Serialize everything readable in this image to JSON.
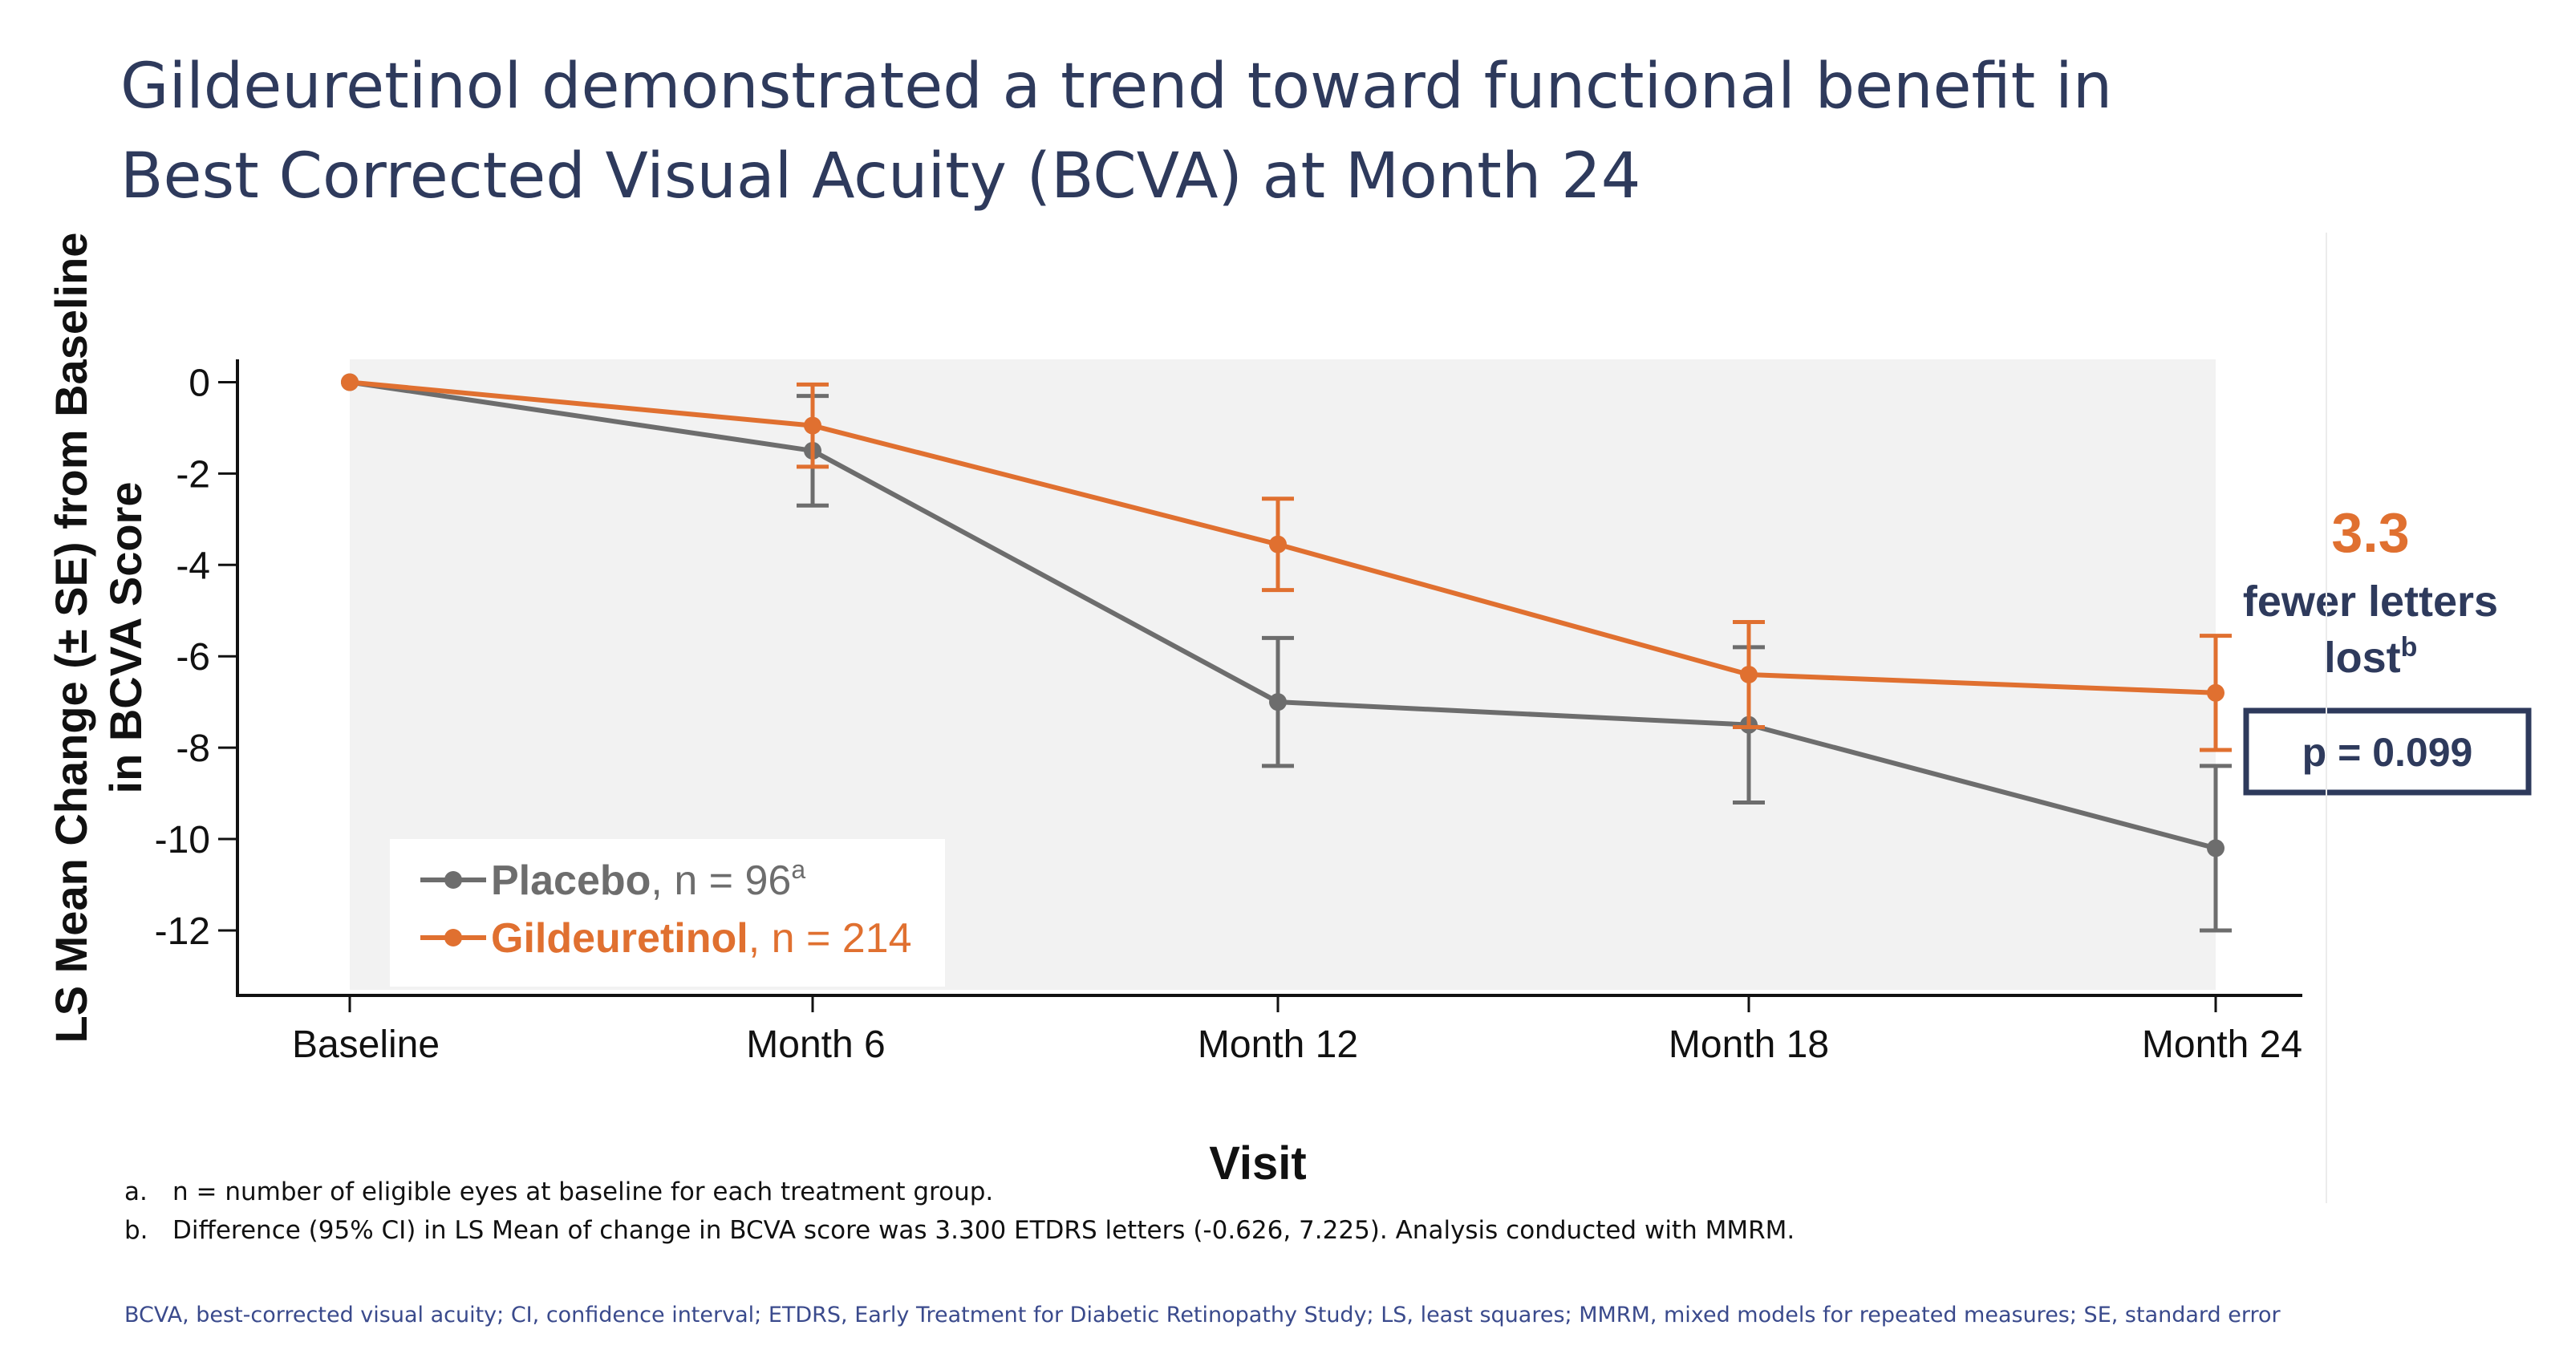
{
  "slide": {
    "title_line1": "Gildeuretinol demonstrated a trend toward functional benefit in",
    "title_line2": "Best Corrected Visual Acuity (BCVA) at Month 24"
  },
  "callout": {
    "value": "3.3",
    "text_line1": "fewer letters",
    "text_line2": "lost",
    "text_sup": "b",
    "pvalue": "p = 0.099",
    "value_color": "#e07030",
    "text_color": "#2e3a5c"
  },
  "footnotes": [
    {
      "mark": "a.",
      "text": "n = number of eligible eyes at baseline for each treatment group."
    },
    {
      "mark": "b.",
      "text": "Difference (95% CI) in LS Mean of change in BCVA score was 3.300 ETDRS letters (-0.626, 7.225). Analysis conducted with MMRM."
    }
  ],
  "abbreviations": "BCVA, best-corrected visual acuity; CI, confidence interval; ETDRS, Early Treatment for Diabetic Retinopathy Study; LS, least squares; MMRM, mixed models for repeated measures; SE, standard error",
  "chart_data": {
    "type": "line",
    "title": "",
    "xlabel": "Visit",
    "ylabel_line1": "LS Mean  Change (± SE) from Baseline",
    "ylabel_line2": "in BCVA Score",
    "categories": [
      "Baseline",
      "Month 6",
      "Month 12",
      "Month 18",
      "Month 24"
    ],
    "ylim": [
      -13.3,
      0.5
    ],
    "yticks": [
      0,
      -2,
      -4,
      -6,
      -8,
      -10,
      -12
    ],
    "ytick_labels": [
      "0",
      "-2",
      "-4",
      "-6",
      "-8",
      "-10",
      "-12"
    ],
    "legend_position": "bottom-left",
    "series": [
      {
        "name": "Placebo",
        "n_label": ", n = 96",
        "n_sup": "a",
        "color": "#6d6d6d",
        "values": [
          0,
          -1.5,
          -7.0,
          -7.5,
          -10.2
        ],
        "se": [
          0,
          1.2,
          1.4,
          1.7,
          1.8
        ]
      },
      {
        "name": "Gildeuretinol",
        "n_label": ", n = 214",
        "n_sup": "",
        "color": "#e07030",
        "values": [
          0,
          -0.95,
          -3.55,
          -6.4,
          -6.8
        ],
        "se": [
          0,
          0.9,
          1.0,
          1.15,
          1.25
        ]
      }
    ]
  }
}
